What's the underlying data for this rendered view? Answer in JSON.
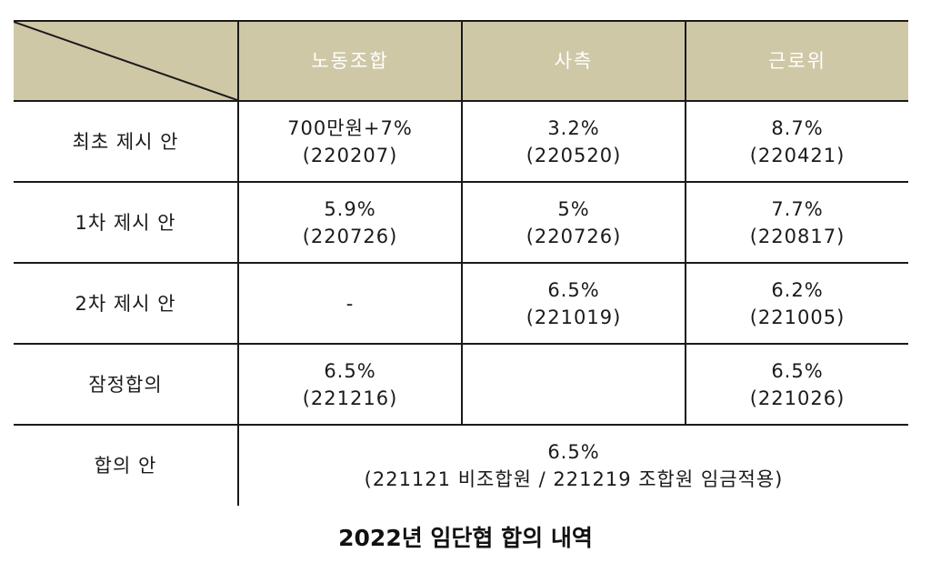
{
  "table": {
    "headers": [
      "노동조합",
      "사측",
      "근로위"
    ],
    "rows": [
      {
        "label": "최초 제시 안",
        "cells": [
          {
            "value": "700만원+7%",
            "date": "(220207)"
          },
          {
            "value": "3.2%",
            "date": "(220520)"
          },
          {
            "value": "8.7%",
            "date": "(220421)"
          }
        ]
      },
      {
        "label": "1차 제시 안",
        "cells": [
          {
            "value": "5.9%",
            "date": "(220726)"
          },
          {
            "value": "5%",
            "date": "(220726)"
          },
          {
            "value": "7.7%",
            "date": "(220817)"
          }
        ]
      },
      {
        "label": "2차 제시 안",
        "cells": [
          {
            "value": "-",
            "date": ""
          },
          {
            "value": "6.5%",
            "date": "(221019)"
          },
          {
            "value": "6.2%",
            "date": "(221005)"
          }
        ]
      },
      {
        "label": "잠정합의",
        "cells": [
          {
            "value": "6.5%",
            "date": "(221216)"
          },
          {
            "value": "",
            "date": ""
          },
          {
            "value": "6.5%",
            "date": "(221026)"
          }
        ]
      }
    ],
    "final_row": {
      "label": "합의 안",
      "value": "6.5%",
      "detail": "(221121 비조합원 / 221219 조합원 임금적용)"
    }
  },
  "caption": "2022년 임단협 합의 내역",
  "colors": {
    "header_bg": "#cfc8a7",
    "header_text": "#ffffff",
    "border": "#1a1a1a"
  }
}
